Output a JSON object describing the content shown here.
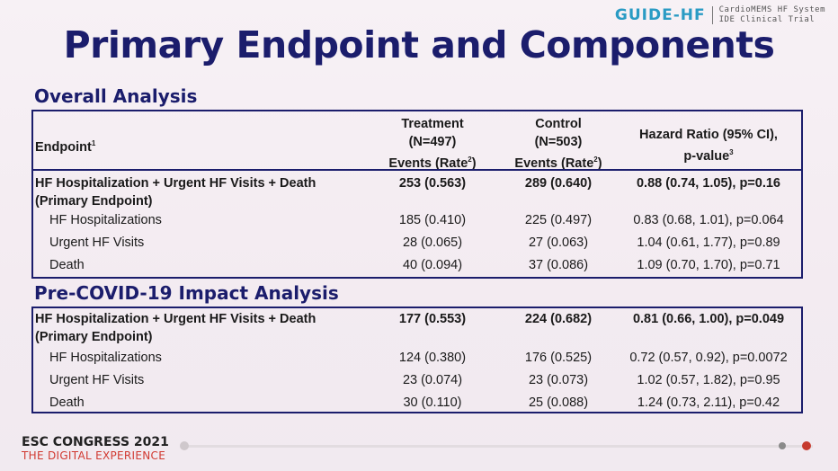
{
  "header": {
    "logo": "GUIDE-HF",
    "subtitle_line1": "CardioMEMS HF System",
    "subtitle_line2": "IDE Clinical Trial"
  },
  "title": "Primary Endpoint and Components",
  "overall": {
    "section_title": "Overall Analysis",
    "columns": {
      "endpoint": "Endpoint",
      "endpoint_sup": "1",
      "treatment_l1": "Treatment",
      "treatment_l2": "(N=497)",
      "treatment_l3": "Events (Rate",
      "treatment_sup": "2",
      "control_l1": "Control",
      "control_l2": "(N=503)",
      "control_l3": "Events (Rate",
      "control_sup": "2",
      "hr_l1": "Hazard Ratio (95% CI),",
      "hr_l2": "p-value",
      "hr_sup": "3"
    },
    "primary": {
      "label_l1": "HF Hospitalization + Urgent HF Visits + Death",
      "label_l2": "(Primary Endpoint)",
      "treatment": "253 (0.563)",
      "control": "289 (0.640)",
      "hr": "0.88 (0.74, 1.05), p=0.16"
    },
    "rows": [
      {
        "label": "HF Hospitalizations",
        "treatment": "185 (0.410)",
        "control": "225 (0.497)",
        "hr": "0.83 (0.68, 1.01), p=0.064"
      },
      {
        "label": "Urgent HF Visits",
        "treatment": "28 (0.065)",
        "control": "27 (0.063)",
        "hr": "1.04 (0.61, 1.77), p=0.89"
      },
      {
        "label": "Death",
        "treatment": "40 (0.094)",
        "control": "37 (0.086)",
        "hr": "1.09 (0.70, 1.70), p=0.71"
      }
    ]
  },
  "precovid": {
    "section_title": "Pre-COVID-19 Impact Analysis",
    "primary": {
      "label_l1": "HF Hospitalization + Urgent HF Visits + Death",
      "label_l2": "(Primary Endpoint)",
      "treatment": "177 (0.553)",
      "control": "224 (0.682)",
      "hr": "0.81 (0.66, 1.00), p=0.049"
    },
    "rows": [
      {
        "label": "HF Hospitalizations",
        "treatment": "124 (0.380)",
        "control": "176 (0.525)",
        "hr": "0.72 (0.57, 0.92), p=0.0072"
      },
      {
        "label": "Urgent HF Visits",
        "treatment": "23 (0.074)",
        "control": "23 (0.073)",
        "hr": "1.02 (0.57, 1.82), p=0.95"
      },
      {
        "label": "Death",
        "treatment": "30 (0.110)",
        "control": "25 (0.088)",
        "hr": "1.24 (0.73, 2.11), p=0.42"
      }
    ]
  },
  "footer": {
    "congress": "ESC CONGRESS 2021",
    "tagline": "THE DIGITAL EXPERIENCE"
  },
  "colors": {
    "accent": "#1b1d6c",
    "brand": "#2a9bc4",
    "footer_red": "#d13a32"
  },
  "video_player": {
    "progress_fraction": 0.0,
    "controls_icon": "playback-progress-bar"
  }
}
